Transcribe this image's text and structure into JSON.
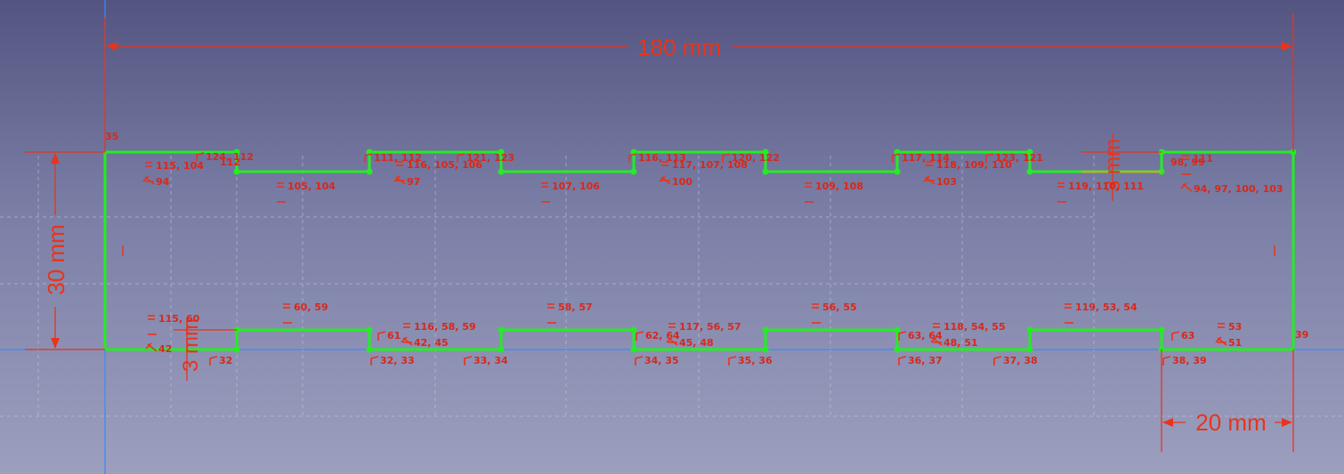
{
  "dimensions": {
    "overall_width": "180 mm",
    "height": "30 mm",
    "slot_depth_left": "3 mm",
    "slot_depth_right": "3 mm",
    "tab_width": "20 mm"
  },
  "constraint_labels": {
    "top": [
      "35",
      "115, 104",
      "94",
      "124, 112",
      "112",
      "105, 104",
      "111, 112",
      "116, 105, 106",
      "97",
      "121, 123",
      "107, 106",
      "116, 113",
      "117, 107, 108",
      "100",
      "120, 122",
      "109, 108",
      "117, 114",
      "118, 109, 110",
      "103",
      "123, 121",
      "119, 110, 111",
      "98, 99",
      "111",
      "94, 97, 100, 103"
    ],
    "bottom": [
      "115, 60",
      "42",
      "32",
      "60, 59",
      "61",
      "116, 58, 59",
      "42, 45",
      "32, 33",
      "33, 34",
      "58, 57",
      "62, 64",
      "117, 56, 57",
      "45, 48",
      "34, 35",
      "35, 36",
      "56, 55",
      "63, 64",
      "118, 54, 55",
      "48, 51",
      "36, 37",
      "37, 38",
      "119, 53, 54",
      "63",
      "53",
      "51",
      "38, 39",
      "39"
    ]
  },
  "colors": {
    "geometry": "#22ee22",
    "constraint": "#e8341c",
    "axis": "#3a88ff",
    "background_top": "#545481",
    "background_bottom": "#9c9fbe"
  }
}
